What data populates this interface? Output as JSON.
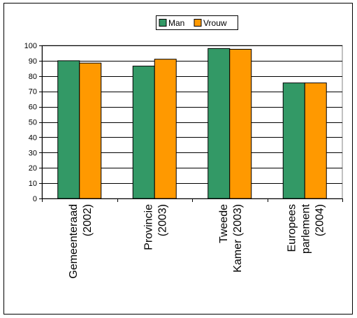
{
  "chart_data": {
    "type": "bar",
    "categories": [
      [
        "Gemeenteraad",
        "(2002)"
      ],
      [
        "Provincie",
        "(2003)"
      ],
      [
        "Tweede",
        "Kamer (2003)"
      ],
      [
        "Europees",
        "parlement",
        "(2004)"
      ]
    ],
    "series": [
      {
        "name": "Man",
        "color": "#339966",
        "values": [
          90,
          86.5,
          98,
          75.5
        ]
      },
      {
        "name": "Vrouw",
        "color": "#ff9900",
        "values": [
          88.5,
          91,
          97.5,
          75.5
        ]
      }
    ],
    "ylim": [
      0,
      100
    ],
    "yticks": [
      0,
      10,
      20,
      30,
      40,
      50,
      60,
      70,
      80,
      90,
      100
    ],
    "grid": true,
    "legend_position": "top-center",
    "plot_background": "#ffffff"
  }
}
